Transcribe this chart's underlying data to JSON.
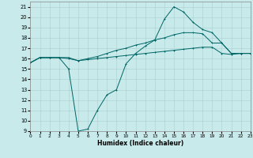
{
  "xlabel": "Humidex (Indice chaleur)",
  "bg_color": "#c8eaea",
  "grid_color": "#aacece",
  "line_color": "#006666",
  "xlim": [
    0,
    23
  ],
  "ylim": [
    9,
    21.5
  ],
  "xticks": [
    0,
    1,
    2,
    3,
    4,
    5,
    6,
    7,
    8,
    9,
    10,
    11,
    12,
    13,
    14,
    15,
    16,
    17,
    18,
    19,
    20,
    21,
    22,
    23
  ],
  "yticks": [
    9,
    10,
    11,
    12,
    13,
    14,
    15,
    16,
    17,
    18,
    19,
    20,
    21
  ],
  "line1_x": [
    0,
    1,
    2,
    3,
    4,
    5,
    6,
    7,
    8,
    9,
    10,
    11,
    12,
    13,
    14,
    15,
    16,
    17,
    18,
    19,
    20,
    21,
    22,
    23
  ],
  "line1_y": [
    15.6,
    16.1,
    16.1,
    16.1,
    16.1,
    15.8,
    15.9,
    16.0,
    16.1,
    16.2,
    16.3,
    16.4,
    16.5,
    16.6,
    16.7,
    16.8,
    16.9,
    17.0,
    17.1,
    17.1,
    16.5,
    16.4,
    16.5,
    16.5
  ],
  "line2_x": [
    0,
    1,
    2,
    3,
    4,
    5,
    6,
    7,
    8,
    9,
    10,
    11,
    12,
    13,
    14,
    15,
    16,
    17,
    18,
    19,
    20,
    21,
    22,
    23
  ],
  "line2_y": [
    15.6,
    16.1,
    16.1,
    16.1,
    16.0,
    15.8,
    16.0,
    16.2,
    16.5,
    16.8,
    17.0,
    17.3,
    17.5,
    17.8,
    18.0,
    18.3,
    18.5,
    18.5,
    18.4,
    17.5,
    17.5,
    16.5,
    16.5,
    16.5
  ],
  "line3_x": [
    0,
    1,
    2,
    3,
    4,
    5,
    6,
    7,
    8,
    9,
    10,
    11,
    12,
    13,
    14,
    15,
    16,
    17,
    18,
    19,
    20,
    21,
    22,
    23
  ],
  "line3_y": [
    15.6,
    16.1,
    16.1,
    16.1,
    15.0,
    9.0,
    9.2,
    11.0,
    12.5,
    13.0,
    15.5,
    16.5,
    17.2,
    17.8,
    19.8,
    21.0,
    20.5,
    19.5,
    18.8,
    18.5,
    17.5,
    16.5,
    16.5,
    16.5
  ]
}
